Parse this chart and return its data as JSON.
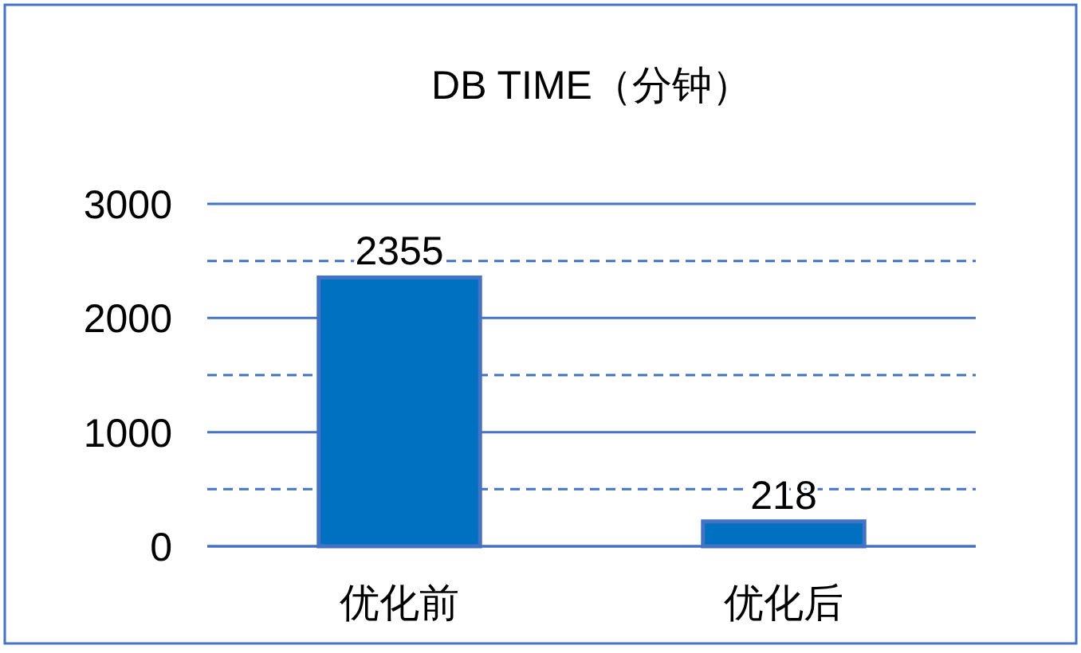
{
  "chart_data": {
    "type": "bar",
    "title": "DB TIME（分钟）",
    "categories": [
      "优化前",
      "优化后"
    ],
    "series": [
      {
        "color": "#0070c0",
        "values": [
          2355,
          218
        ]
      }
    ],
    "ylim": [
      0,
      3000
    ],
    "yticks": [
      0,
      {
        "value": 500,
        "label": null
      },
      1000,
      {
        "value": 1500,
        "label": null
      },
      2000,
      {
        "value": 2500,
        "label": null
      },
      3000
    ],
    "grid": "y",
    "data_labels": true
  }
}
